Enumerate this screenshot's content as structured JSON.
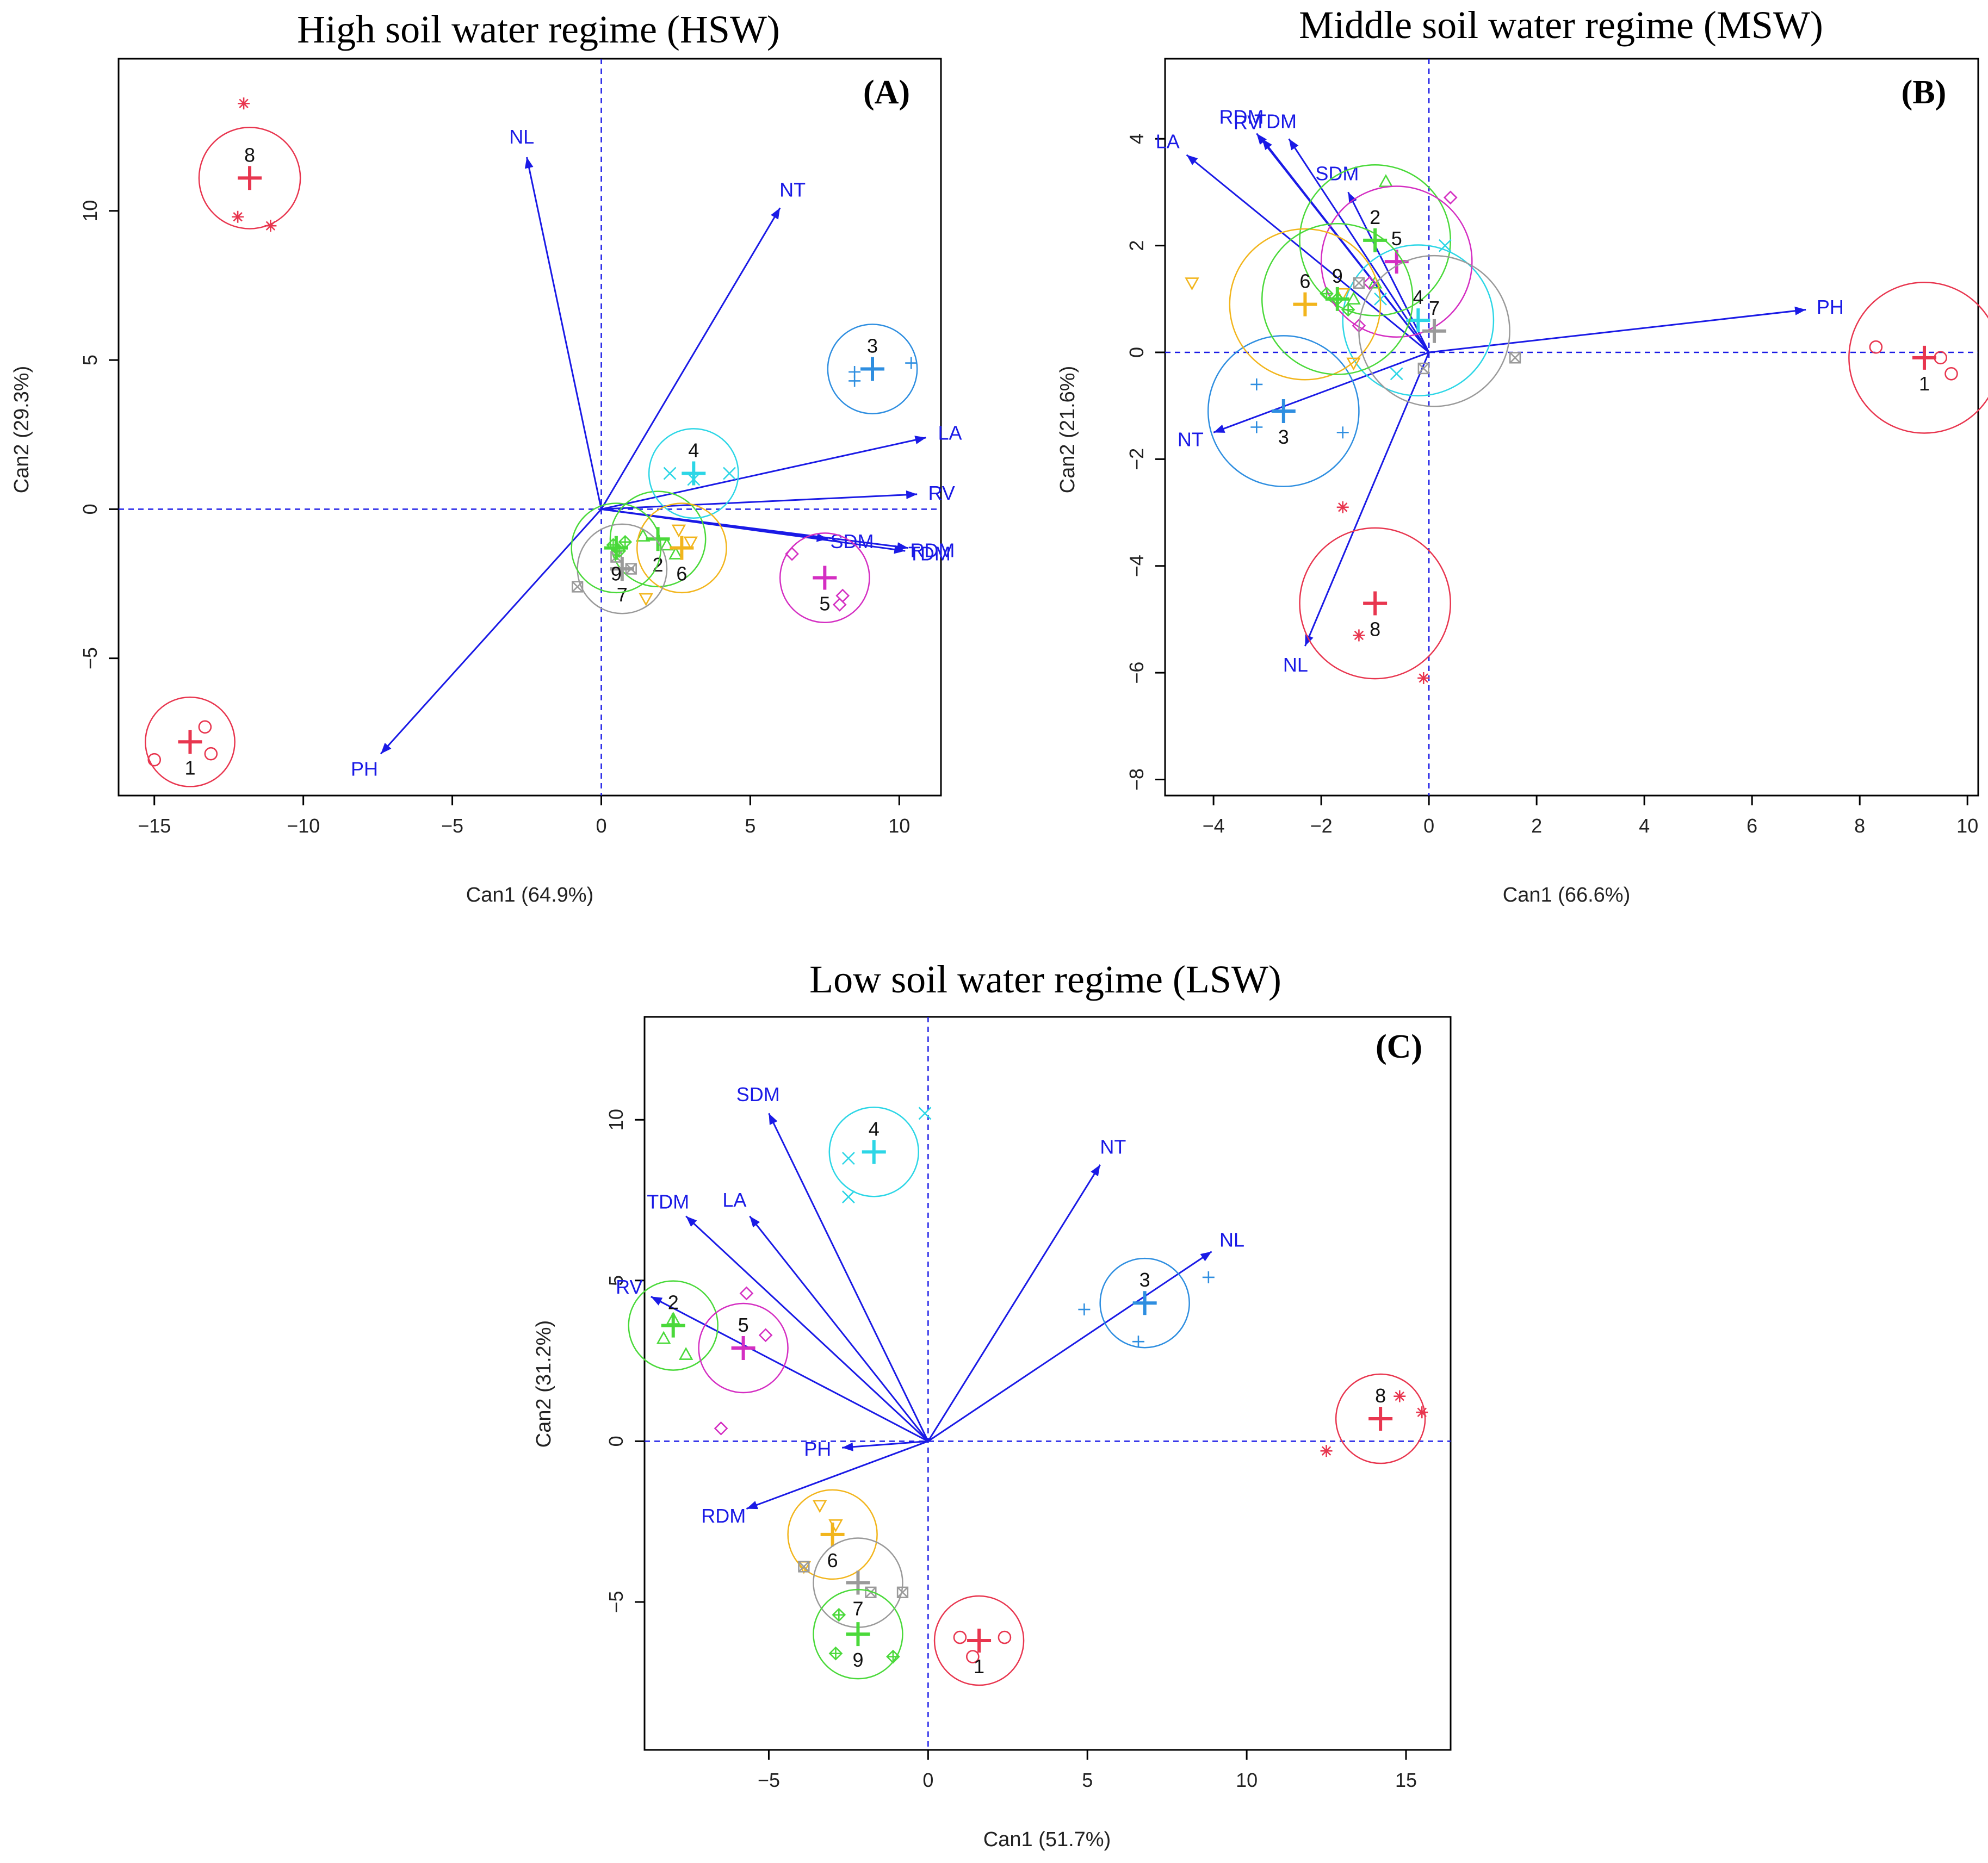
{
  "figure": {
    "vector_color": "#1a1ae6",
    "zero_line_color": "#1a1ae6",
    "group_colors": {
      "1": "#e8364f",
      "2": "#4ad93a",
      "3": "#2e8ee0",
      "4": "#2cd6e6",
      "5": "#d42ec2",
      "6": "#f2b51c",
      "7": "#9a9a9a",
      "8": "#e8364f",
      "9": "#4ad93a"
    }
  },
  "chart_data": [
    {
      "type": "scatter",
      "panel": "(A)",
      "title": "High soil water regime (HSW)",
      "xlabel": "Can1 (64.9%)",
      "ylabel": "Can2 (29.3%)",
      "xlim": [
        -16.2,
        11.4
      ],
      "ylim": [
        -9.6,
        15.1
      ],
      "xticks": [
        -15,
        -10,
        -5,
        0,
        5,
        10
      ],
      "yticks": [
        -5,
        0,
        5,
        10
      ],
      "vectors": [
        {
          "name": "NL",
          "x": -2.5,
          "y": 11.8
        },
        {
          "name": "NT",
          "x": 6.0,
          "y": 10.1
        },
        {
          "name": "LA",
          "x": 10.9,
          "y": 2.4
        },
        {
          "name": "RV",
          "x": 10.6,
          "y": 0.5
        },
        {
          "name": "SDM",
          "x": 7.6,
          "y": -1.0
        },
        {
          "name": "RDM",
          "x": 10.3,
          "y": -1.3
        },
        {
          "name": "TDM",
          "x": 10.2,
          "y": -1.4
        },
        {
          "name": "PH",
          "x": -7.4,
          "y": -8.2
        }
      ],
      "groups": [
        {
          "id": "1",
          "center": [
            -13.8,
            -7.8
          ],
          "radius": 1.5,
          "points": [
            [
              -15.0,
              -8.4
            ],
            [
              -13.3,
              -7.3
            ],
            [
              -13.1,
              -8.2
            ]
          ]
        },
        {
          "id": "2",
          "center": [
            1.9,
            -1.0
          ],
          "radius": 1.6,
          "points": [
            [
              2.2,
              -1.2
            ],
            [
              1.4,
              -0.9
            ],
            [
              2.5,
              -1.5
            ]
          ]
        },
        {
          "id": "3",
          "center": [
            9.1,
            4.7
          ],
          "radius": 1.5,
          "points": [
            [
              8.5,
              4.3
            ],
            [
              8.5,
              4.6
            ],
            [
              10.4,
              4.9
            ]
          ]
        },
        {
          "id": "4",
          "center": [
            3.1,
            1.2
          ],
          "radius": 1.5,
          "points": [
            [
              2.3,
              1.2
            ],
            [
              4.3,
              1.2
            ],
            [
              3.1,
              1.0
            ]
          ]
        },
        {
          "id": "5",
          "center": [
            7.5,
            -2.3
          ],
          "radius": 1.5,
          "points": [
            [
              6.4,
              -1.5
            ],
            [
              8.0,
              -3.2
            ],
            [
              8.1,
              -2.9
            ]
          ]
        },
        {
          "id": "6",
          "center": [
            2.7,
            -1.3
          ],
          "radius": 1.5,
          "points": [
            [
              2.6,
              -0.7
            ],
            [
              1.5,
              -3.0
            ],
            [
              3.0,
              -1.1
            ]
          ]
        },
        {
          "id": "7",
          "center": [
            0.7,
            -2.0
          ],
          "radius": 1.5,
          "points": [
            [
              -0.8,
              -2.6
            ],
            [
              0.5,
              -1.6
            ],
            [
              1.0,
              -2.0
            ]
          ]
        },
        {
          "id": "8",
          "center": [
            -11.8,
            11.1
          ],
          "radius": 1.7,
          "points": [
            [
              -12.0,
              13.6
            ],
            [
              -12.2,
              9.8
            ],
            [
              -11.1,
              9.5
            ]
          ]
        },
        {
          "id": "9",
          "center": [
            0.5,
            -1.3
          ],
          "radius": 1.5,
          "points": [
            [
              0.4,
              -1.2
            ],
            [
              0.8,
              -1.1
            ],
            [
              0.6,
              -1.4
            ]
          ]
        }
      ]
    },
    {
      "type": "scatter",
      "panel": "(B)",
      "title": "Middle soil water regime (MSW)",
      "xlabel": "Can1 (66.6%)",
      "ylabel": "Can2 (21.6%)",
      "xlim": [
        -4.9,
        10.2
      ],
      "ylim": [
        -8.3,
        5.5
      ],
      "xticks": [
        -4,
        -2,
        0,
        2,
        4,
        6,
        8,
        10
      ],
      "yticks": [
        -8,
        -6,
        -4,
        -2,
        0,
        2,
        4
      ],
      "vectors": [
        {
          "name": "LA",
          "x": -4.5,
          "y": 3.7
        },
        {
          "name": "RDM",
          "x": -3.2,
          "y": 4.1
        },
        {
          "name": "TDM",
          "x": -2.6,
          "y": 4.0
        },
        {
          "name": "RV",
          "x": -3.1,
          "y": 4.0
        },
        {
          "name": "SDM",
          "x": -1.5,
          "y": 3.0
        },
        {
          "name": "PH",
          "x": 7.0,
          "y": 0.8
        },
        {
          "name": "NT",
          "x": -4.0,
          "y": -1.5
        },
        {
          "name": "NL",
          "x": -2.3,
          "y": -5.5
        }
      ],
      "groups": [
        {
          "id": "1",
          "center": [
            9.2,
            -0.1
          ],
          "radius": 1.4,
          "points": [
            [
              8.3,
              0.1
            ],
            [
              9.5,
              -0.1
            ],
            [
              9.7,
              -0.4
            ]
          ]
        },
        {
          "id": "2",
          "center": [
            -1.0,
            2.1
          ],
          "radius": 1.4,
          "points": [
            [
              -0.8,
              3.2
            ],
            [
              -1.4,
              1.0
            ],
            [
              -1.0,
              1.3
            ]
          ]
        },
        {
          "id": "3",
          "center": [
            -2.7,
            -1.1
          ],
          "radius": 1.4,
          "points": [
            [
              -3.2,
              -0.6
            ],
            [
              -3.2,
              -1.4
            ],
            [
              -1.6,
              -1.5
            ]
          ]
        },
        {
          "id": "4",
          "center": [
            -0.2,
            0.6
          ],
          "radius": 1.4,
          "points": [
            [
              -0.6,
              -0.4
            ],
            [
              0.3,
              2.0
            ],
            [
              -0.9,
              1.0
            ]
          ]
        },
        {
          "id": "5",
          "center": [
            -0.6,
            1.7
          ],
          "radius": 1.4,
          "points": [
            [
              0.4,
              2.9
            ],
            [
              -1.3,
              0.5
            ],
            [
              -1.1,
              1.3
            ]
          ]
        },
        {
          "id": "6",
          "center": [
            -2.3,
            0.9
          ],
          "radius": 1.4,
          "points": [
            [
              -4.4,
              1.3
            ],
            [
              -1.4,
              -0.2
            ],
            [
              -1.6,
              1.1
            ]
          ]
        },
        {
          "id": "7",
          "center": [
            0.1,
            0.4
          ],
          "radius": 1.4,
          "points": [
            [
              1.6,
              -0.1
            ],
            [
              -1.3,
              1.3
            ],
            [
              -0.1,
              -0.3
            ]
          ]
        },
        {
          "id": "8",
          "center": [
            -1.0,
            -4.7
          ],
          "radius": 1.4,
          "points": [
            [
              -1.6,
              -2.9
            ],
            [
              -1.3,
              -5.3
            ],
            [
              -0.1,
              -6.1
            ]
          ]
        },
        {
          "id": "9",
          "center": [
            -1.7,
            1.0
          ],
          "radius": 1.4,
          "points": [
            [
              -1.7,
              1.0
            ],
            [
              -1.5,
              0.8
            ],
            [
              -1.9,
              1.1
            ]
          ]
        }
      ]
    },
    {
      "type": "scatter",
      "panel": "(C)",
      "title": "Low soil water regime (LSW)",
      "xlabel": "Can1 (51.7%)",
      "ylabel": "Can2 (31.2%)",
      "xlim": [
        -8.9,
        16.4
      ],
      "ylim": [
        -9.6,
        13.2
      ],
      "xticks": [
        -5,
        0,
        5,
        10,
        15
      ],
      "yticks": [
        -5,
        0,
        5,
        10
      ],
      "vectors": [
        {
          "name": "SDM",
          "x": -5.0,
          "y": 10.2
        },
        {
          "name": "NT",
          "x": 5.4,
          "y": 8.6
        },
        {
          "name": "NL",
          "x": 8.9,
          "y": 5.9
        },
        {
          "name": "TDM",
          "x": -7.6,
          "y": 7.0
        },
        {
          "name": "LA",
          "x": -5.6,
          "y": 7.0
        },
        {
          "name": "RV",
          "x": -8.7,
          "y": 4.5
        },
        {
          "name": "PH",
          "x": -2.7,
          "y": -0.2
        },
        {
          "name": "RDM",
          "x": -5.7,
          "y": -2.1
        }
      ],
      "groups": [
        {
          "id": "1",
          "center": [
            1.6,
            -6.2
          ],
          "radius": 1.4,
          "points": [
            [
              1.0,
              -6.1
            ],
            [
              1.4,
              -6.7
            ],
            [
              2.4,
              -6.1
            ]
          ]
        },
        {
          "id": "2",
          "center": [
            -8.0,
            3.6
          ],
          "radius": 1.4,
          "points": [
            [
              -7.6,
              2.7
            ],
            [
              -8.0,
              3.8
            ],
            [
              -8.3,
              3.2
            ]
          ]
        },
        {
          "id": "3",
          "center": [
            6.8,
            4.3
          ],
          "radius": 1.4,
          "points": [
            [
              4.9,
              4.1
            ],
            [
              6.6,
              3.1
            ],
            [
              8.8,
              5.1
            ]
          ]
        },
        {
          "id": "4",
          "center": [
            -1.7,
            9.0
          ],
          "radius": 1.4,
          "points": [
            [
              -2.5,
              8.8
            ],
            [
              -2.5,
              7.6
            ],
            [
              -0.1,
              10.2
            ]
          ]
        },
        {
          "id": "5",
          "center": [
            -5.8,
            2.9
          ],
          "radius": 1.4,
          "points": [
            [
              -5.7,
              4.6
            ],
            [
              -5.1,
              3.3
            ],
            [
              -6.5,
              0.4
            ]
          ]
        },
        {
          "id": "6",
          "center": [
            -3.0,
            -2.9
          ],
          "radius": 1.4,
          "points": [
            [
              -3.4,
              -2.0
            ],
            [
              -2.9,
              -2.6
            ],
            [
              -3.9,
              -3.9
            ]
          ]
        },
        {
          "id": "7",
          "center": [
            -2.2,
            -4.4
          ],
          "radius": 1.4,
          "points": [
            [
              -0.8,
              -4.7
            ],
            [
              -1.8,
              -4.7
            ],
            [
              -3.9,
              -3.9
            ]
          ]
        },
        {
          "id": "8",
          "center": [
            14.2,
            0.7
          ],
          "radius": 1.4,
          "points": [
            [
              14.8,
              1.4
            ],
            [
              15.5,
              0.9
            ],
            [
              12.5,
              -0.3
            ]
          ]
        },
        {
          "id": "9",
          "center": [
            -2.2,
            -6.0
          ],
          "radius": 1.4,
          "points": [
            [
              -2.8,
              -5.4
            ],
            [
              -2.9,
              -6.6
            ],
            [
              -1.1,
              -6.7
            ]
          ]
        }
      ]
    }
  ]
}
